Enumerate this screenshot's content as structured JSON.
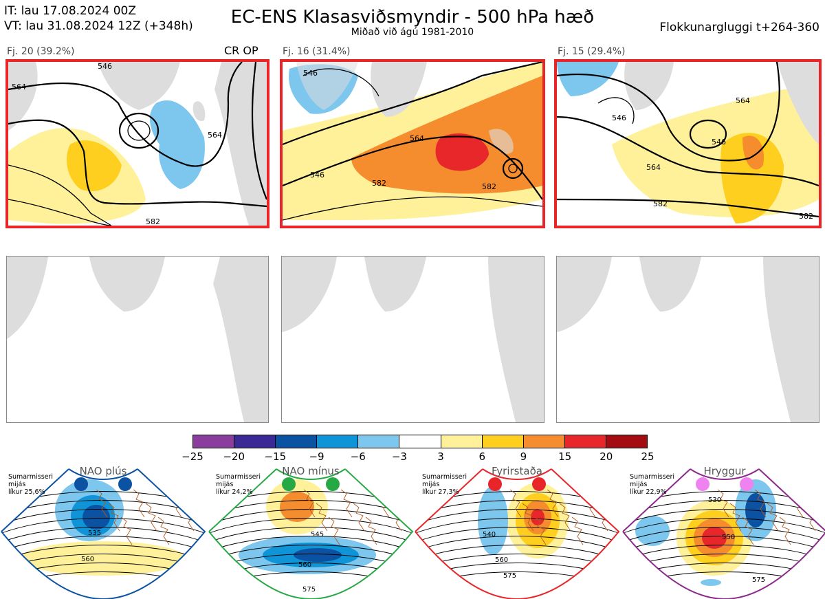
{
  "header": {
    "it": "IT: lau 17.08.2024 00Z",
    "vt": "VT: lau 31.08.2024 12Z  (+348h)",
    "title": "EC-ENS Klasasviðsmyndir - 500 hPa hæð",
    "subtitle": "Miðað við ágú 1981-2010",
    "window": "Flokkunargluggi t+264-360"
  },
  "clusters": [
    {
      "label": "Fj. 20 (39.2%)",
      "extra": "CR OP",
      "contours": [
        "546",
        "564",
        "564",
        "582"
      ]
    },
    {
      "label": "Fj. 16 (31.4%)",
      "extra": "",
      "contours": [
        "546",
        "564",
        "582",
        "582",
        "546"
      ]
    },
    {
      "label": "Fj. 15 (29.4%)",
      "extra": "",
      "contours": [
        "546",
        "546",
        "564",
        "582",
        "564",
        "582"
      ]
    }
  ],
  "colorbar": {
    "ticks": [
      "−25",
      "−20",
      "−15",
      "−9",
      "−6",
      "−3",
      "3",
      "6",
      "9",
      "15",
      "20",
      "25"
    ],
    "colors": [
      "#8a3d9c",
      "#3b2a96",
      "#0c52a3",
      "#0f94d8",
      "#7dc6ee",
      "#ffffff",
      "#fff19a",
      "#fecf1f",
      "#f58d2f",
      "#e8272b",
      "#a30d12"
    ]
  },
  "regimes": [
    {
      "name": "NAO plús",
      "note": [
        "Sumarmisseri",
        "mijás",
        "líkur 25,6%"
      ],
      "dot_color": "#0c52a3",
      "border": "#0c52a3",
      "contours": [
        "535",
        "560"
      ]
    },
    {
      "name": "NAO mínus",
      "note": [
        "Sumarmisseri",
        "mijás",
        "líkur 24,2%"
      ],
      "dot_color": "#26a844",
      "border": "#26a844",
      "contours": [
        "545",
        "560",
        "575"
      ]
    },
    {
      "name": "Fyrirstaða",
      "note": [
        "Sumarmisseri",
        "mijás",
        "líkur 27,3%"
      ],
      "dot_color": "#e8262a",
      "border": "#e8262a",
      "contours": [
        "540",
        "560",
        "575"
      ]
    },
    {
      "name": "Hryggur",
      "note": [
        "Sumarmisseri",
        "mijás",
        "líkur 22,9%"
      ],
      "dot_color": "#ee82ee",
      "border": "#8b2a8b",
      "contours": [
        "530",
        "550",
        "575"
      ]
    }
  ]
}
